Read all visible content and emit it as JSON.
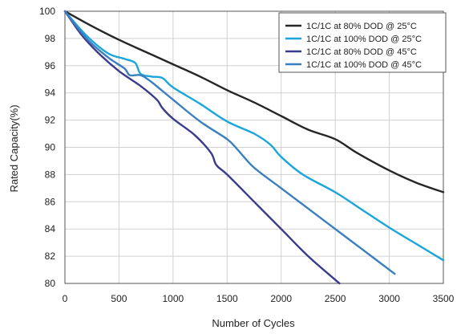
{
  "chart_data": {
    "type": "line",
    "title": "",
    "xlabel": "Number of Cycles",
    "ylabel": "Rated Capacity(%)",
    "xlim": [
      0,
      3500
    ],
    "ylim": [
      80,
      100
    ],
    "x_ticks": [
      0,
      500,
      1000,
      1500,
      2000,
      2500,
      3000,
      3500
    ],
    "y_ticks": [
      80,
      82,
      84,
      86,
      88,
      90,
      92,
      94,
      96,
      98,
      100
    ],
    "grid": true,
    "legend_position": "top-right",
    "series": [
      {
        "name": "1C/1C at 80% DOD @ 25°C",
        "color": "#262626",
        "points": [
          [
            0,
            100
          ],
          [
            250,
            98.9
          ],
          [
            500,
            97.9
          ],
          [
            750,
            97.0
          ],
          [
            1000,
            96.1
          ],
          [
            1250,
            95.2
          ],
          [
            1500,
            94.2
          ],
          [
            1750,
            93.3
          ],
          [
            2000,
            92.3
          ],
          [
            2250,
            91.3
          ],
          [
            2500,
            90.6
          ],
          [
            2700,
            89.6
          ],
          [
            3000,
            88.3
          ],
          [
            3250,
            87.4
          ],
          [
            3500,
            86.7
          ]
        ]
      },
      {
        "name": "1C/1C at 100% DOD @ 25°C",
        "color": "#1aa6d9",
        "points": [
          [
            0,
            100
          ],
          [
            200,
            98.2
          ],
          [
            400,
            96.9
          ],
          [
            550,
            96.5
          ],
          [
            650,
            96.2
          ],
          [
            700,
            95.4
          ],
          [
            800,
            95.2
          ],
          [
            900,
            95.1
          ],
          [
            1000,
            94.4
          ],
          [
            1250,
            93.2
          ],
          [
            1500,
            91.9
          ],
          [
            1750,
            91.0
          ],
          [
            1900,
            90.2
          ],
          [
            2000,
            89.3
          ],
          [
            2200,
            88.0
          ],
          [
            2500,
            86.7
          ],
          [
            2750,
            85.4
          ],
          [
            3000,
            84.1
          ],
          [
            3250,
            82.9
          ],
          [
            3500,
            81.7
          ]
        ]
      },
      {
        "name": "1C/1C at 80% DOD @ 45°C",
        "color": "#3b3b8c",
        "points": [
          [
            0,
            100
          ],
          [
            150,
            98.3
          ],
          [
            300,
            97.0
          ],
          [
            500,
            95.6
          ],
          [
            700,
            94.5
          ],
          [
            850,
            93.5
          ],
          [
            900,
            92.9
          ],
          [
            1000,
            92.1
          ],
          [
            1200,
            90.9
          ],
          [
            1350,
            89.6
          ],
          [
            1400,
            88.7
          ],
          [
            1500,
            88.0
          ],
          [
            1750,
            86.0
          ],
          [
            2000,
            84.0
          ],
          [
            2250,
            82.0
          ],
          [
            2540,
            80.0
          ]
        ]
      },
      {
        "name": "1C/1C at 100% DOD @ 45°C",
        "color": "#3a7fbf",
        "points": [
          [
            0,
            100
          ],
          [
            200,
            98.0
          ],
          [
            400,
            96.6
          ],
          [
            550,
            95.8
          ],
          [
            600,
            95.3
          ],
          [
            700,
            95.3
          ],
          [
            800,
            94.8
          ],
          [
            1000,
            93.5
          ],
          [
            1250,
            91.9
          ],
          [
            1500,
            90.6
          ],
          [
            1600,
            89.8
          ],
          [
            1750,
            88.5
          ],
          [
            2000,
            87.0
          ],
          [
            2250,
            85.5
          ],
          [
            2500,
            84.0
          ],
          [
            2750,
            82.5
          ],
          [
            3050,
            80.7
          ]
        ]
      }
    ]
  }
}
